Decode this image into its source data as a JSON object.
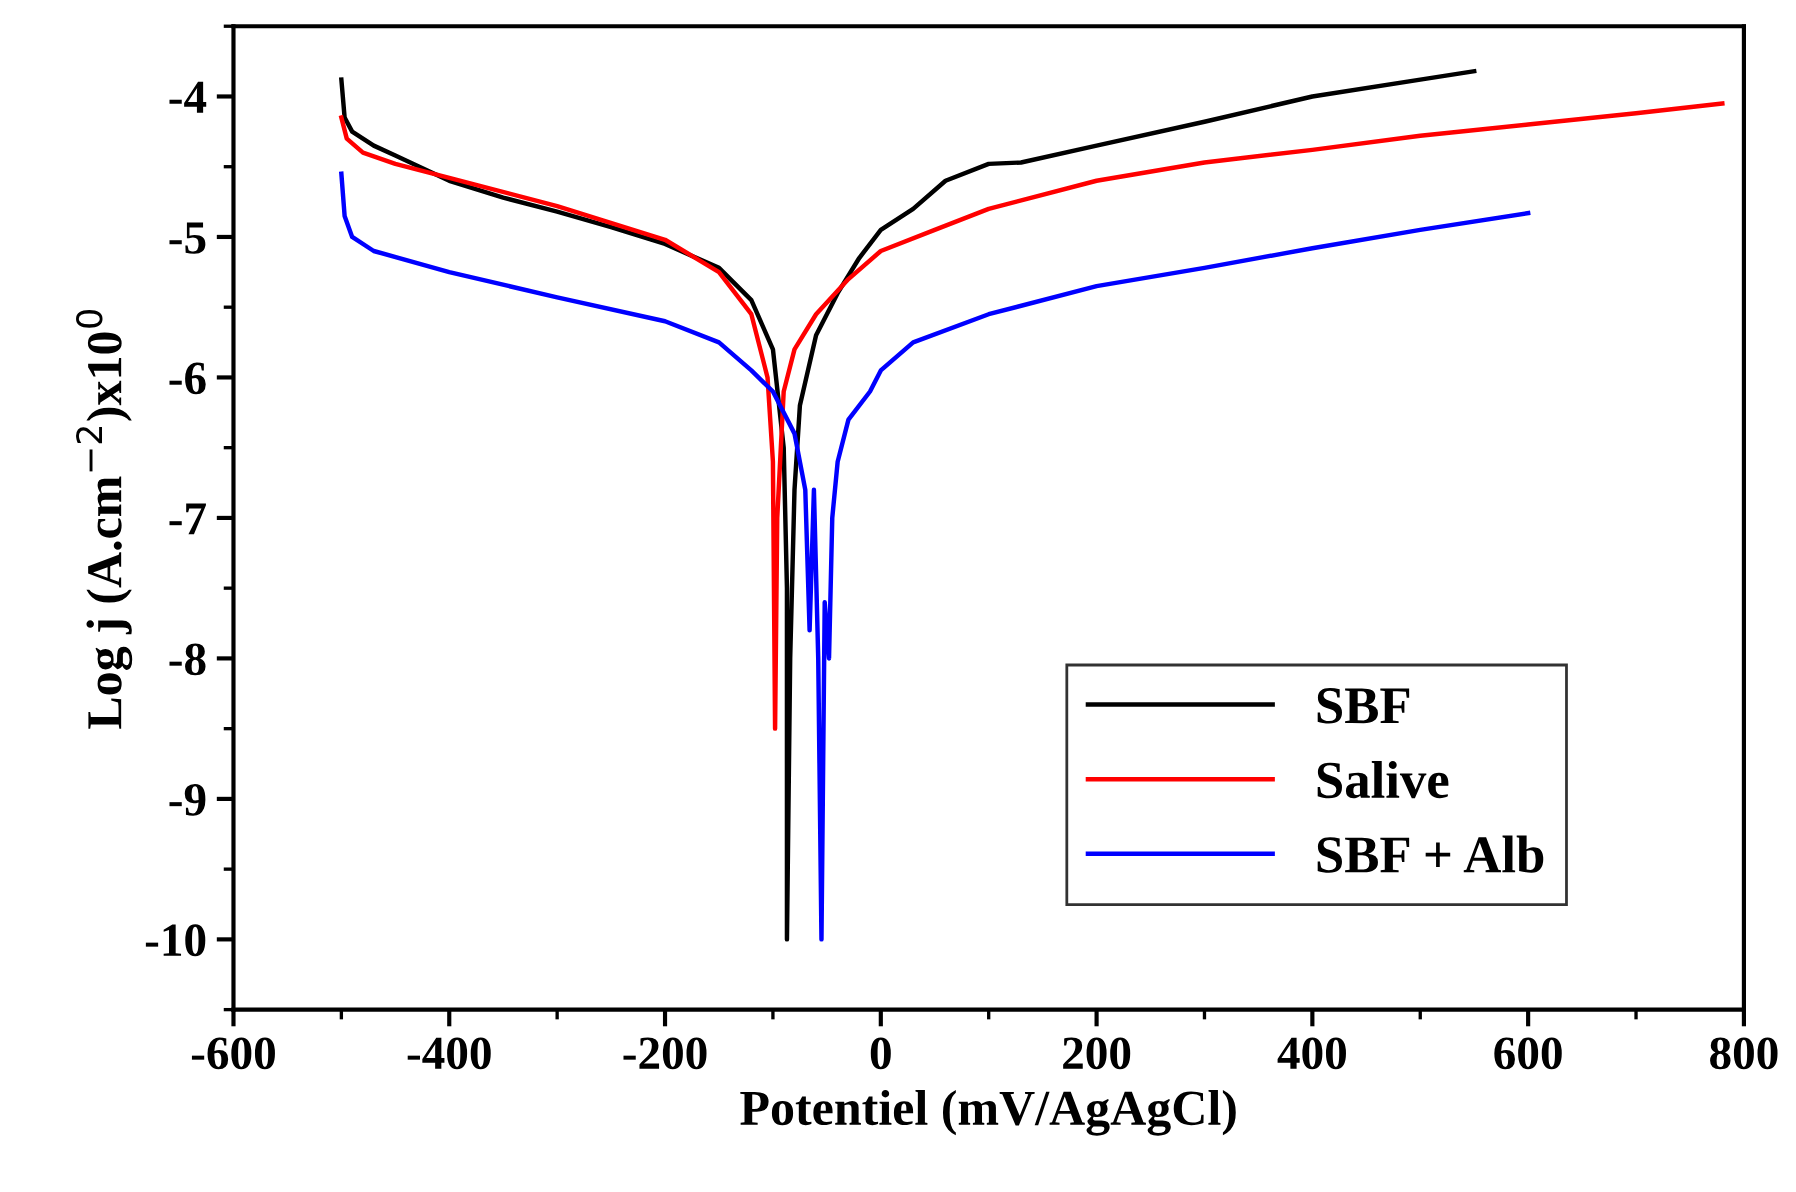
{
  "chart_data": {
    "type": "line",
    "xlabel": "Potentiel (mV/AgAgCl)",
    "ylabel": "Log j (A.cm$^{−2}$)x10$^{0}$",
    "xlim": [
      -600,
      800
    ],
    "xticks": [
      -600,
      -400,
      -200,
      0,
      200,
      400,
      600,
      800
    ],
    "ylim": [
      -10.5,
      -3.5
    ],
    "yticks": [
      -10,
      -9,
      -8,
      -7,
      -6,
      -5,
      -4
    ],
    "grid": false,
    "legend": "bottom right",
    "marker": "none",
    "line_style": "solid",
    "series": [
      {
        "name": "SBF",
        "color": "#000000",
        "x": [
          -500,
          -497,
          -490,
          -470,
          -450,
          -400,
          -350,
          -300,
          -250,
          -200,
          -150,
          -120,
          -100,
          -90,
          -87,
          -87,
          -84,
          -80,
          -75,
          -60,
          -40,
          -20,
          0,
          30,
          60,
          100,
          130,
          200,
          300,
          400,
          500,
          550
        ],
        "values": [
          -3.88,
          -4.15,
          -4.25,
          -4.35,
          -4.42,
          -4.6,
          -4.72,
          -4.82,
          -4.93,
          -5.05,
          -5.22,
          -5.45,
          -5.8,
          -6.5,
          -7.5,
          -10,
          -8,
          -6.8,
          -6.2,
          -5.7,
          -5.4,
          -5.15,
          -4.95,
          -4.8,
          -4.6,
          -4.48,
          -4.47,
          -4.35,
          -4.18,
          -4.0,
          -3.88,
          -3.82
        ]
      },
      {
        "name": "Salive",
        "color": "#ff0000",
        "x": [
          -500,
          -495,
          -480,
          -450,
          -400,
          -300,
          -200,
          -150,
          -120,
          -105,
          -100,
          -98,
          -96,
          -90,
          -80,
          -60,
          -30,
          0,
          50,
          100,
          200,
          300,
          400,
          500,
          600,
          700,
          780
        ],
        "values": [
          -4.15,
          -4.3,
          -4.4,
          -4.48,
          -4.58,
          -4.78,
          -5.02,
          -5.25,
          -5.55,
          -6.0,
          -6.6,
          -8.5,
          -7.0,
          -6.1,
          -5.8,
          -5.55,
          -5.3,
          -5.1,
          -4.95,
          -4.8,
          -4.6,
          -4.47,
          -4.38,
          -4.28,
          -4.2,
          -4.12,
          -4.05
        ]
      },
      {
        "name": "SBF + Alb",
        "color": "#0000ff",
        "x": [
          -500,
          -497,
          -490,
          -470,
          -400,
          -300,
          -200,
          -150,
          -120,
          -100,
          -80,
          -70,
          -66,
          -62,
          -58,
          -55,
          -52,
          -48,
          -45,
          -40,
          -30,
          -10,
          0,
          30,
          100,
          200,
          300,
          400,
          500,
          600
        ],
        "values": [
          -4.55,
          -4.85,
          -5.0,
          -5.1,
          -5.25,
          -5.43,
          -5.6,
          -5.75,
          -5.95,
          -6.1,
          -6.4,
          -6.8,
          -7.8,
          -6.8,
          -8.0,
          -10,
          -7.6,
          -8.0,
          -7.0,
          -6.6,
          -6.3,
          -6.1,
          -5.95,
          -5.75,
          -5.55,
          -5.35,
          -5.22,
          -5.08,
          -4.95,
          -4.83
        ]
      }
    ]
  }
}
